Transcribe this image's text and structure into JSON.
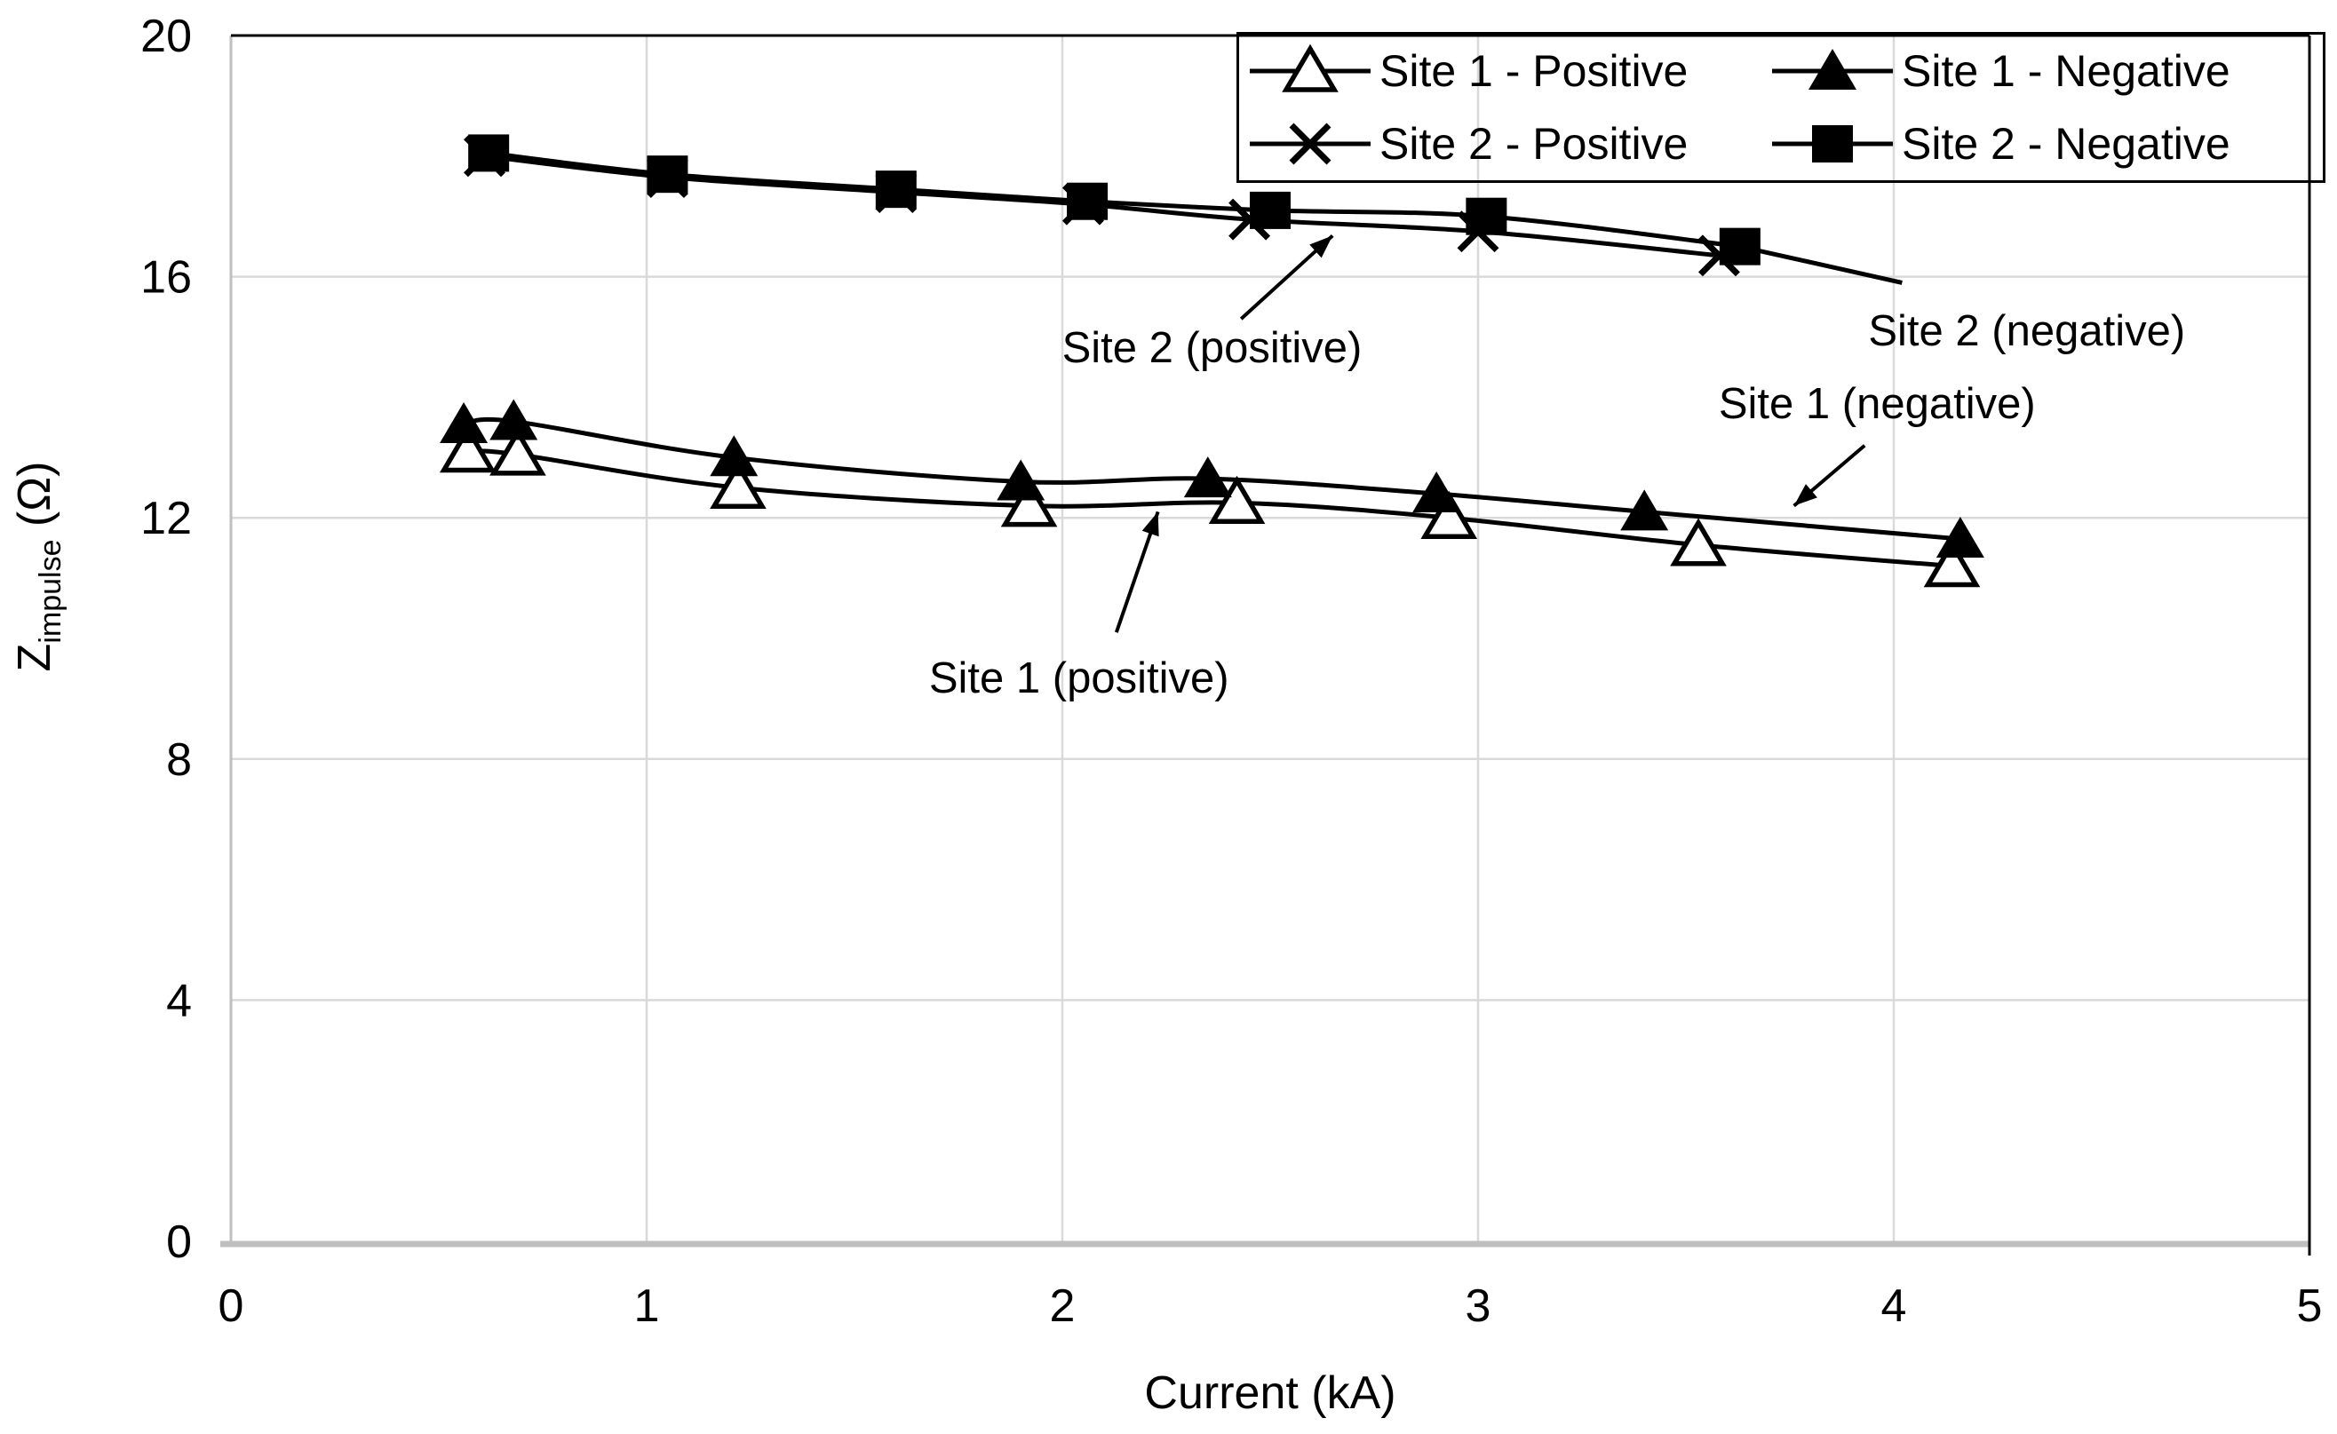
{
  "figure": {
    "background": "#ffffff",
    "line_color": "#000000",
    "grid_color": "#d9d9d9",
    "axis_color": "#bfbfbf",
    "border_color": "#000000",
    "text_color": "#000000"
  },
  "chart_data": {
    "type": "line",
    "title": "",
    "xlabel": "Current (kA)",
    "ylabel": "Z_impulse (Ω)",
    "ylabel_parts": {
      "main": "Z",
      "sub": "impulse",
      "suffix": " (Ω)"
    },
    "xlim": [
      0,
      5
    ],
    "ylim": [
      0,
      20
    ],
    "x_ticks": [
      0,
      1,
      2,
      3,
      4,
      5
    ],
    "y_ticks": [
      0,
      4,
      8,
      12,
      16,
      20
    ],
    "grid": true,
    "legend_position": "top-right",
    "series": [
      {
        "name": "Site 1 - Positive",
        "marker": "triangle-open",
        "x": [
          0.57,
          0.69,
          1.22,
          1.92,
          2.42,
          2.93,
          3.53,
          4.14
        ],
        "y": [
          13.1,
          13.05,
          12.5,
          12.2,
          12.25,
          12.0,
          11.55,
          11.2
        ]
      },
      {
        "name": "Site 1 - Negative",
        "marker": "triangle-filled",
        "x": [
          0.56,
          0.68,
          1.21,
          1.9,
          2.35,
          2.9,
          3.4,
          4.16
        ],
        "y": [
          13.55,
          13.6,
          13.0,
          12.6,
          12.65,
          12.4,
          12.1,
          11.65
        ]
      },
      {
        "name": "Site 2 - Positive",
        "marker": "x",
        "x": [
          0.61,
          1.05,
          1.6,
          2.05,
          2.45,
          3.0,
          3.58
        ],
        "y": [
          18.0,
          17.65,
          17.4,
          17.2,
          16.95,
          16.75,
          16.35
        ]
      },
      {
        "name": "Site 2 - Negative",
        "marker": "square-filled",
        "x": [
          0.62,
          1.05,
          1.6,
          2.06,
          2.5,
          3.02,
          3.63
        ],
        "y": [
          18.05,
          17.7,
          17.45,
          17.25,
          17.1,
          17.0,
          16.5
        ]
      }
    ],
    "annotations": [
      {
        "text": "Site 2 (positive)",
        "text_at": [
          2.36,
          14.8
        ],
        "arrow_from": [
          2.43,
          15.3
        ],
        "arrow_to": [
          2.65,
          16.68
        ],
        "arrowhead": true
      },
      {
        "text": "Site 1 (positive)",
        "text_at": [
          2.04,
          9.32
        ],
        "arrow_from": [
          2.13,
          10.1
        ],
        "arrow_to": [
          2.23,
          12.1
        ],
        "arrowhead": true
      },
      {
        "text": "Site 1 (negative)",
        "text_at": [
          3.96,
          13.88
        ],
        "arrow_from": [
          3.93,
          13.2
        ],
        "arrow_to": [
          3.76,
          12.2
        ],
        "arrowhead": true
      },
      {
        "text": "Site 2 (negative)",
        "text_at": [
          4.32,
          15.08
        ],
        "arrow_from": [
          3.63,
          16.5
        ],
        "arrow_to": [
          4.02,
          15.9
        ],
        "arrowhead": false
      }
    ]
  }
}
